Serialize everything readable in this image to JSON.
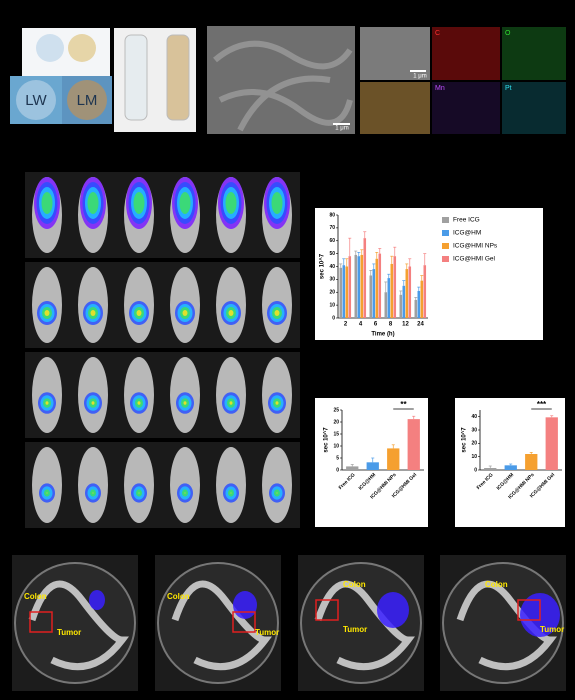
{
  "figure": {
    "photo_labels": [
      "LW",
      "LM"
    ],
    "scale_bars": [
      "1 μm",
      "1 μm"
    ],
    "eds_labels": [
      "C",
      "O",
      "Mn",
      "Pt"
    ],
    "dish_labels": [
      {
        "colon": "Colon",
        "tumor": "Tumor"
      },
      {
        "colon": "Colon",
        "tumor": "Tumor"
      },
      {
        "colon": "Colon",
        "tumor": "Tumor"
      },
      {
        "colon": "Colon",
        "tumor": "Tumor"
      }
    ]
  },
  "chart_data": [
    {
      "type": "bar",
      "categories": [
        "2",
        "4",
        "6",
        "8",
        "12",
        "24"
      ],
      "x_label": "Time (h)",
      "y_label": "sec 10^7",
      "ylim": [
        0,
        80
      ],
      "yticks": [
        0,
        10,
        20,
        30,
        40,
        50,
        60,
        70,
        80
      ],
      "legend": "right",
      "series": [
        {
          "name": "Free ICG",
          "color": "#a0a0a0",
          "values": [
            39,
            49,
            33,
            20,
            18,
            14
          ],
          "errors": [
            3,
            3,
            4,
            8,
            3,
            2
          ]
        },
        {
          "name": "ICG@HM",
          "color": "#4a9be8",
          "values": [
            41,
            48,
            38,
            31,
            25,
            21
          ],
          "errors": [
            5,
            3,
            4,
            3,
            4,
            3
          ]
        },
        {
          "name": "ICG@HMI NPs",
          "color": "#f5a030",
          "values": [
            40,
            49,
            46,
            42,
            38,
            29
          ],
          "errors": [
            6,
            4,
            5,
            6,
            4,
            4
          ]
        },
        {
          "name": "ICG@HMI Gel",
          "color": "#f48080",
          "values": [
            48,
            62,
            50,
            48,
            40,
            41
          ],
          "errors": [
            14,
            5,
            4,
            7,
            6,
            9
          ]
        }
      ]
    },
    {
      "type": "bar",
      "categories": [
        "Free ICG",
        "ICG@HM",
        "ICG@HMI NPs",
        "ICG@HMI Gel"
      ],
      "y_label": "sec 10^7",
      "ylim": [
        0,
        25
      ],
      "yticks": [
        0,
        5,
        10,
        15,
        20,
        25
      ],
      "values": [
        1.5,
        3.2,
        9,
        21.2
      ],
      "errors": [
        0.8,
        1.8,
        1.5,
        1.2
      ],
      "colors": [
        "#a0a0a0",
        "#4a9be8",
        "#f5a030",
        "#f48080"
      ],
      "annotation": "**"
    },
    {
      "type": "bar",
      "categories": [
        "Free ICG",
        "ICG@HM",
        "ICG@HMI NPs",
        "ICG@HMI Gel"
      ],
      "y_label": "sec 10^7",
      "ylim": [
        0,
        45
      ],
      "yticks": [
        0,
        10,
        20,
        30,
        40
      ],
      "values": [
        1.5,
        3.5,
        12,
        39.5
      ],
      "errors": [
        1.5,
        1,
        1.2,
        1.2
      ],
      "colors": [
        "#a0a0a0",
        "#4a9be8",
        "#f5a030",
        "#f48080"
      ],
      "annotation": "***"
    }
  ]
}
